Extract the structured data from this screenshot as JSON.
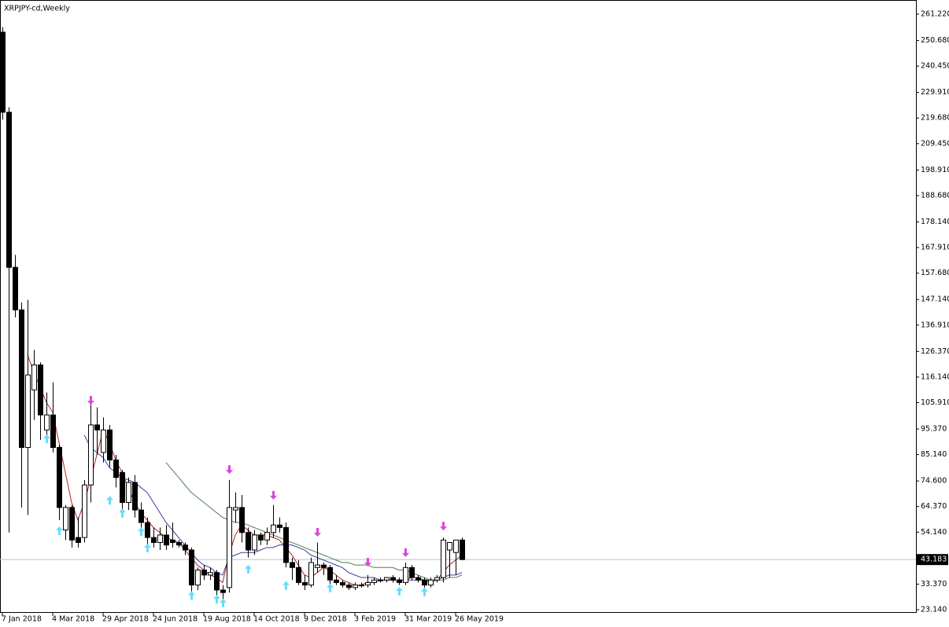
{
  "chart_data": {
    "type": "candlestick",
    "title": "XRPJPY-cd,Weekly",
    "categories": [
      "7 Jan 2018",
      null,
      null,
      null,
      null,
      null,
      null,
      null,
      "4 Mar 2018",
      null,
      null,
      null,
      null,
      null,
      null,
      null,
      "29 Apr 2018",
      null,
      null,
      null,
      null,
      null,
      null,
      null,
      "24 Jun 2018",
      null,
      null,
      null,
      null,
      null,
      null,
      null,
      "19 Aug 2018",
      null,
      null,
      null,
      null,
      null,
      null,
      null,
      "14 Oct 2018",
      null,
      null,
      null,
      null,
      null,
      null,
      null,
      "9 Dec 2018",
      null,
      null,
      null,
      null,
      null,
      null,
      null,
      "3 Feb 2019",
      null,
      null,
      null,
      null,
      null,
      null,
      null,
      "31 Mar 2019",
      null,
      null,
      null,
      null,
      null,
      null,
      null,
      "26 May 2019",
      null
    ],
    "open": [
      254,
      222,
      160,
      143,
      88,
      111,
      121,
      95,
      101,
      88,
      55,
      64,
      52,
      52,
      73,
      97,
      86,
      95,
      83,
      78,
      66,
      74,
      63,
      58,
      52,
      50,
      53,
      51,
      50,
      49,
      47,
      33,
      39,
      37,
      38,
      31,
      32,
      63,
      64,
      54,
      47,
      53,
      51,
      54,
      57,
      56,
      42,
      40,
      34,
      33,
      40,
      41,
      40,
      35,
      34,
      33,
      32,
      33,
      33,
      34,
      35,
      35,
      36,
      35,
      34,
      40,
      36,
      35,
      33,
      35,
      36,
      47,
      46,
      51
    ],
    "high": [
      256,
      224,
      165,
      146,
      147,
      127,
      122,
      110,
      114,
      89,
      65,
      65,
      60,
      75,
      106,
      104,
      100,
      97,
      85,
      79,
      76,
      77,
      66,
      60,
      56,
      56,
      57,
      58,
      51,
      50,
      48,
      40,
      41,
      40,
      39,
      33,
      75,
      70,
      69,
      56,
      55,
      54,
      56,
      65,
      60,
      58,
      44,
      43,
      37,
      44,
      50,
      42,
      41,
      37,
      35,
      34,
      34,
      34,
      37,
      36,
      36,
      36,
      37,
      36,
      42,
      41,
      37,
      36,
      36,
      37,
      52,
      50,
      51,
      52
    ],
    "low": [
      219,
      54,
      140,
      64,
      61,
      99,
      91,
      91,
      86,
      59,
      51,
      48,
      48,
      50,
      66,
      85,
      82,
      80,
      72,
      60,
      63,
      60,
      53,
      47,
      48,
      47,
      47,
      48,
      48,
      45,
      30,
      31,
      35,
      35,
      29,
      27,
      30,
      58,
      50,
      44,
      45,
      49,
      49,
      52,
      54,
      40,
      35,
      33,
      31,
      32,
      38,
      37,
      33,
      33,
      32,
      31,
      31,
      32,
      32,
      33,
      34,
      34,
      34,
      33,
      33,
      35,
      34,
      32,
      32,
      34,
      34,
      36,
      37,
      43
    ],
    "close": [
      222,
      160,
      143,
      88,
      117,
      121,
      101,
      101,
      88,
      64,
      64,
      51,
      50,
      73,
      97,
      95,
      95,
      83,
      76,
      66,
      74,
      63,
      58,
      52,
      50,
      53,
      49,
      50,
      49,
      47,
      33,
      39,
      37,
      38,
      31,
      30,
      64,
      64,
      54,
      47,
      53,
      51,
      54,
      57,
      56,
      42,
      40,
      34,
      33,
      42,
      41,
      40,
      35,
      34,
      33,
      32,
      33,
      33,
      34,
      35,
      35,
      36,
      35,
      34,
      40,
      36,
      35,
      33,
      35,
      36,
      51,
      50,
      51,
      43.183
    ],
    "up_color": "#ffffff",
    "down_color": "#000000",
    "series": [
      {
        "color": "#b22222",
        "values": [
          null,
          null,
          null,
          null,
          125,
          118,
          112,
          106,
          102,
          90,
          78,
          66,
          59,
          66,
          75,
          85,
          95,
          90,
          83,
          78,
          72,
          66,
          62,
          59,
          56,
          54,
          52,
          51,
          50,
          47,
          44,
          41,
          39,
          37,
          36,
          34,
          45,
          53,
          57,
          55,
          53,
          53,
          53,
          52,
          51,
          48,
          45,
          41,
          37,
          36,
          38,
          40,
          39,
          37,
          35,
          34,
          33,
          33,
          34,
          34,
          35,
          35,
          35,
          35,
          35,
          36,
          36,
          35,
          34,
          35,
          38,
          41,
          43,
          45
        ]
      },
      {
        "color": "#3a3a9a",
        "values": [
          null,
          null,
          null,
          null,
          null,
          null,
          null,
          null,
          null,
          null,
          null,
          null,
          null,
          93,
          88,
          86,
          84,
          80,
          78,
          76,
          75,
          74,
          72,
          70,
          66,
          62,
          58,
          55,
          52,
          49,
          46,
          43,
          41,
          40,
          38,
          37,
          44,
          45,
          46,
          46,
          46,
          47,
          48,
          48,
          49,
          49,
          49,
          48,
          47,
          45,
          44,
          43,
          42,
          41,
          40,
          38,
          37,
          36,
          36,
          36,
          35,
          35,
          35,
          35,
          35,
          35,
          35,
          35,
          35,
          35,
          36,
          37,
          37,
          38
        ]
      },
      {
        "color": "#4f7f4f",
        "values": [
          null,
          null,
          null,
          null,
          null,
          null,
          null,
          null,
          null,
          null,
          null,
          null,
          null,
          null,
          null,
          null,
          null,
          null,
          null,
          null,
          null,
          null,
          null,
          null,
          null,
          null,
          82,
          79,
          76,
          73,
          70,
          68,
          66,
          64,
          62,
          60,
          59,
          58,
          58,
          57,
          56,
          55,
          54,
          53,
          52,
          51,
          50,
          49,
          48,
          47,
          46,
          45,
          44,
          43,
          42,
          42,
          41,
          41,
          41,
          40,
          40,
          40,
          40,
          39,
          39,
          38,
          37,
          36,
          35,
          35,
          35,
          36,
          36,
          37
        ]
      }
    ],
    "up_arrows": {
      "color": "#66ddff",
      "x": [
        7,
        9,
        17,
        19,
        22,
        23,
        30,
        34,
        35,
        39,
        45,
        52,
        63,
        67
      ],
      "values": [
        91.6,
        54.9,
        67,
        62,
        54.5,
        48,
        29,
        27.5,
        26,
        39.5,
        33,
        32,
        30.7,
        30.4
      ]
    },
    "down_arrows": {
      "color": "#dd44dd",
      "x": [
        14,
        36,
        43,
        50,
        58,
        64,
        70
      ],
      "values": [
        106.7,
        79,
        68.7,
        53.9,
        42,
        45.8,
        56.4
      ]
    },
    "current_price": 43.183,
    "ylim": [
      21.88,
      266.87
    ],
    "yticks": [
      {
        "value": 261.22,
        "label": "261.220"
      },
      {
        "value": 250.68,
        "label": "250.680"
      },
      {
        "value": 240.45,
        "label": "240.450"
      },
      {
        "value": 229.91,
        "label": "229.910"
      },
      {
        "value": 219.68,
        "label": "219.680"
      },
      {
        "value": 209.45,
        "label": "209.450"
      },
      {
        "value": 198.91,
        "label": "198.910"
      },
      {
        "value": 188.68,
        "label": "188.680"
      },
      {
        "value": 178.14,
        "label": "178.140"
      },
      {
        "value": 167.91,
        "label": "167.910"
      },
      {
        "value": 157.68,
        "label": "157.680"
      },
      {
        "value": 147.14,
        "label": "147.140"
      },
      {
        "value": 136.91,
        "label": "136.910"
      },
      {
        "value": 126.37,
        "label": "126.370"
      },
      {
        "value": 116.14,
        "label": "116.140"
      },
      {
        "value": 105.91,
        "label": "105.910"
      },
      {
        "value": 95.37,
        "label": "95.370"
      },
      {
        "value": 85.14,
        "label": "85.140"
      },
      {
        "value": 74.6,
        "label": "74.600"
      },
      {
        "value": 64.37,
        "label": "64.370"
      },
      {
        "value": 54.14,
        "label": "54.140"
      },
      {
        "value": 33.37,
        "label": "33.370"
      },
      {
        "value": 23.14,
        "label": "23.140"
      }
    ]
  }
}
